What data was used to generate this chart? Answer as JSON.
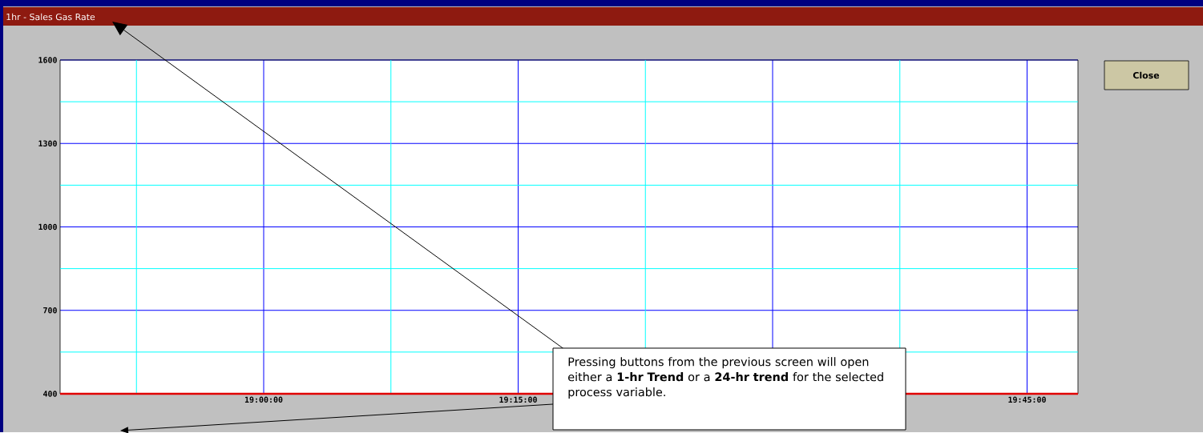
{
  "chart_data": {
    "type": "line",
    "title": "1hr - Sales Gas Rate",
    "x": [
      18.8,
      19.8
    ],
    "series": [
      {
        "color": "#e00000",
        "values": [
          400,
          400
        ]
      }
    ],
    "xlim": [
      18.8,
      19.8
    ],
    "ylim": [
      400,
      1600
    ],
    "xticks": [
      {
        "value": 19,
        "label": "19:00:00"
      },
      {
        "value": 19.25,
        "label": "19:15:00"
      },
      {
        "value": 19.5,
        "label": null
      },
      {
        "value": 19.75,
        "label": "19:45:00"
      }
    ],
    "yticks": [
      400,
      700,
      1000,
      1300,
      1600
    ],
    "grid": true,
    "ref_lines": [
      {
        "axis": "x",
        "value": 18.875,
        "color": "#00ffff"
      },
      {
        "axis": "x",
        "value": 19.125,
        "color": "#00ffff"
      },
      {
        "axis": "x",
        "value": 19.375,
        "color": "#00ffff"
      },
      {
        "axis": "x",
        "value": 19.625,
        "color": "#00ffff"
      },
      {
        "axis": "y",
        "value": 550,
        "color": "#00ffff"
      },
      {
        "axis": "y",
        "value": 850,
        "color": "#00ffff"
      },
      {
        "axis": "y",
        "value": 1150,
        "color": "#00ffff"
      },
      {
        "axis": "y",
        "value": 1450,
        "color": "#00ffff"
      }
    ],
    "annotations": [
      "Close",
      "Pressing buttons from the previous screen will open either a **1-hr Trend** or a **24-hr trend** for the selected process variable."
    ]
  }
}
